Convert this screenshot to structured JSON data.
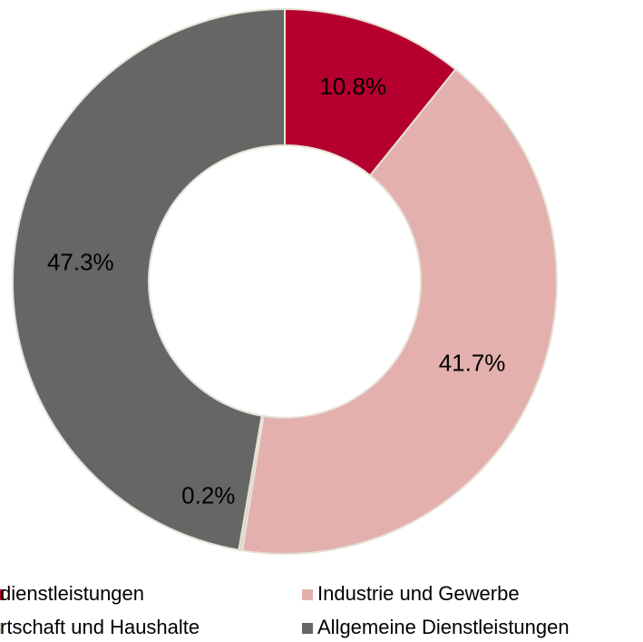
{
  "chart_data": {
    "type": "pie",
    "categories": [
      "dienstleistungen",
      "Industrie und Gewerbe",
      "rtschaft und Haushalte",
      "Allgemeine Dienstleistungen"
    ],
    "values": [
      10.8,
      41.7,
      0.2,
      47.3
    ],
    "value_labels": [
      "10.8%",
      "41.7%",
      "0.2%",
      "47.3%"
    ],
    "colors": [
      "#b5002f",
      "#e3b0ad",
      "#d9d2c2",
      "#666666"
    ]
  }
}
